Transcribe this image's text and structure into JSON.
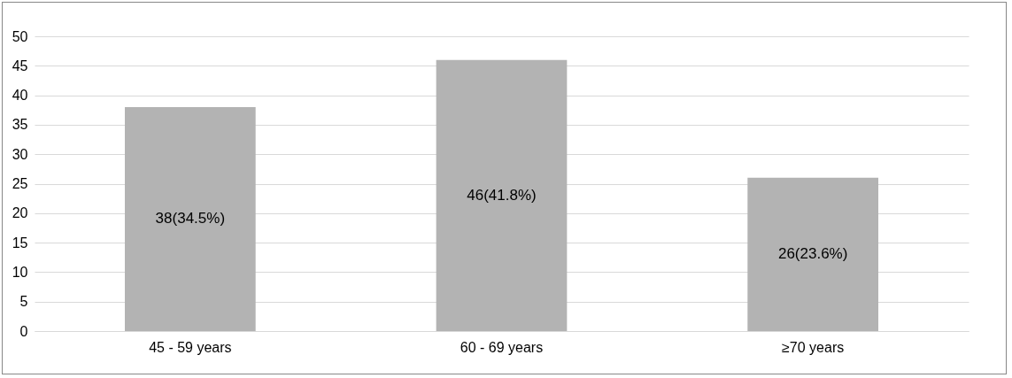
{
  "chart_data": {
    "type": "bar",
    "categories": [
      "45 - 59 years",
      "60 - 69 years",
      "≥70 years"
    ],
    "values": [
      38,
      46,
      26
    ],
    "value_labels": [
      "38(34.5%)",
      "46(41.8%)",
      "26(23.6%)"
    ],
    "color": "#b3b3b3",
    "ylim": [
      0,
      50
    ],
    "yticks": [
      0,
      5,
      10,
      15,
      20,
      25,
      30,
      35,
      40,
      45,
      50
    ],
    "grid": "y"
  }
}
